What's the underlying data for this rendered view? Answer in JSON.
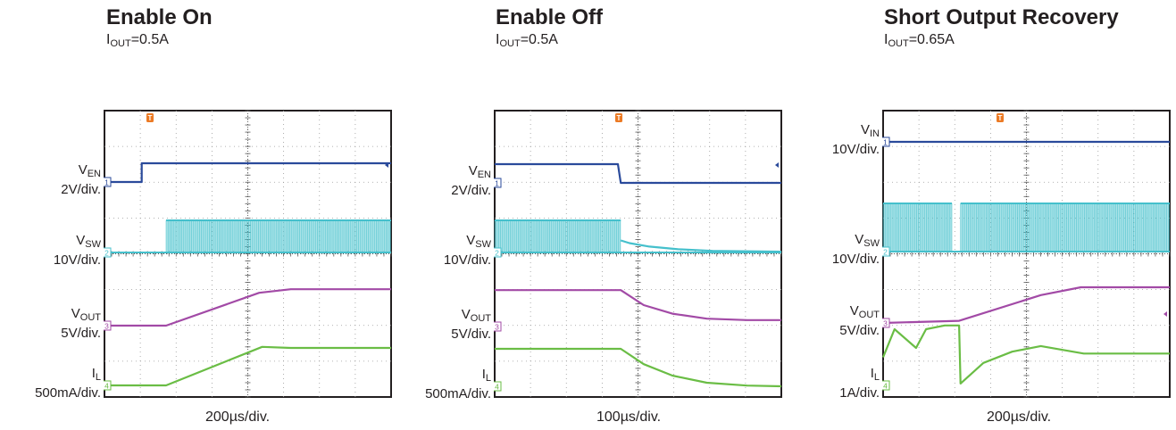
{
  "colors": {
    "en": "#2a4a9b",
    "sw": "#45c0cc",
    "out": "#a24aa6",
    "il": "#6abd45",
    "trigger": "#ec7a24"
  },
  "chart_data": [
    {
      "type": "line",
      "title": "Enable On",
      "subtitle": {
        "sym": "I",
        "sub": "OUT",
        "rest": "=0.5A"
      },
      "time_div": "200µs/div.",
      "x_unit": "µs",
      "xlim": [
        0,
        2000
      ],
      "grid": true,
      "series": [
        {
          "name": "V_EN",
          "sym": "V",
          "sub": "EN",
          "scale": "2V/div.",
          "marker": "1",
          "x": [
            0,
            260,
            260,
            2000
          ],
          "y": [
            0,
            0,
            6,
            6
          ]
        },
        {
          "name": "V_SW",
          "sym": "V",
          "sub": "SW",
          "scale": "10V/div.",
          "marker": "2",
          "switching": [
            [
              0,
              0
            ],
            [
              430,
              0
            ],
            [
              430,
              12
            ],
            [
              2000,
              12
            ]
          ]
        },
        {
          "name": "V_OUT",
          "sym": "V",
          "sub": "OUT",
          "scale": "5V/div.",
          "marker": "3",
          "x": [
            0,
            430,
            1080,
            1300,
            2000
          ],
          "y": [
            0,
            0,
            4.6,
            5.1,
            5.1
          ]
        },
        {
          "name": "I_L",
          "sym": "I",
          "sub": "L",
          "scale": "500mA/div.",
          "marker": "4",
          "x": [
            0,
            430,
            1100,
            1300,
            2000
          ],
          "y": [
            0,
            0,
            1.08,
            1.05,
            1.05
          ]
        }
      ]
    },
    {
      "type": "line",
      "title": "Enable Off",
      "subtitle": {
        "sym": "I",
        "sub": "OUT",
        "rest": "=0.5A"
      },
      "time_div": "100µs/div.",
      "x_unit": "µs",
      "xlim": [
        0,
        1000
      ],
      "grid": true,
      "series": [
        {
          "name": "V_EN",
          "sym": "V",
          "sub": "EN",
          "scale": "2V/div.",
          "marker": "1",
          "x": [
            0,
            430,
            440,
            1000
          ],
          "y": [
            6,
            6,
            0,
            0
          ]
        },
        {
          "name": "V_SW",
          "sym": "V",
          "sub": "SW",
          "scale": "10V/div.",
          "marker": "2",
          "switching": [
            [
              0,
              12
            ],
            [
              440,
              12
            ]
          ],
          "x": [
            440,
            470,
            540,
            640,
            760,
            1000
          ],
          "y": [
            4.5,
            3.5,
            2.2,
            1.2,
            0.6,
            0.3
          ]
        },
        {
          "name": "V_OUT",
          "sym": "V",
          "sub": "OUT",
          "scale": "5V/div.",
          "marker": "3",
          "x": [
            0,
            440,
            520,
            620,
            740,
            880,
            1000
          ],
          "y": [
            5.1,
            5.1,
            3.0,
            1.8,
            1.1,
            0.9,
            0.9
          ]
        },
        {
          "name": "I_L",
          "sym": "I",
          "sub": "L",
          "scale": "500mA/div.",
          "marker": "4",
          "x": [
            0,
            440,
            520,
            620,
            740,
            880,
            1000
          ],
          "y": [
            1.05,
            1.05,
            0.62,
            0.3,
            0.1,
            0.02,
            0
          ]
        }
      ]
    },
    {
      "type": "line",
      "title": "Short Output Recovery",
      "subtitle": {
        "sym": "I",
        "sub": "OUT",
        "rest": "=0.65A"
      },
      "time_div": "200µs/div.",
      "x_unit": "µs",
      "xlim": [
        0,
        2000
      ],
      "grid": true,
      "series": [
        {
          "name": "V_IN",
          "sym": "V",
          "sub": "IN",
          "scale": "10V/div.",
          "marker": "1",
          "x": [
            0,
            2000
          ],
          "y": [
            12,
            12
          ]
        },
        {
          "name": "V_SW",
          "sym": "V",
          "sub": "SW",
          "scale": "10V/div.",
          "marker": "2",
          "switching": [
            [
              0,
              12
            ],
            [
              480,
              12
            ],
            [
              480,
              1
            ],
            [
              540,
              1
            ],
            [
              540,
              12
            ],
            [
              2000,
              12
            ]
          ]
        },
        {
          "name": "V_OUT",
          "sym": "V",
          "sub": "OUT",
          "scale": "5V/div.",
          "marker": "3",
          "x": [
            0,
            530,
            1100,
            1380,
            2000
          ],
          "y": [
            0,
            0.3,
            3.9,
            5.0,
            5.0
          ]
        },
        {
          "name": "I_L",
          "sym": "I",
          "sub": "L",
          "scale": "1A/div.",
          "marker": "4",
          "x": [
            0,
            80,
            230,
            300,
            430,
            530,
            540,
            700,
            900,
            1100,
            1400,
            2000
          ],
          "y": [
            1.5,
            3.0,
            2.0,
            3.0,
            3.2,
            3.2,
            0.1,
            1.2,
            1.8,
            2.1,
            1.7,
            1.7
          ]
        }
      ]
    }
  ]
}
